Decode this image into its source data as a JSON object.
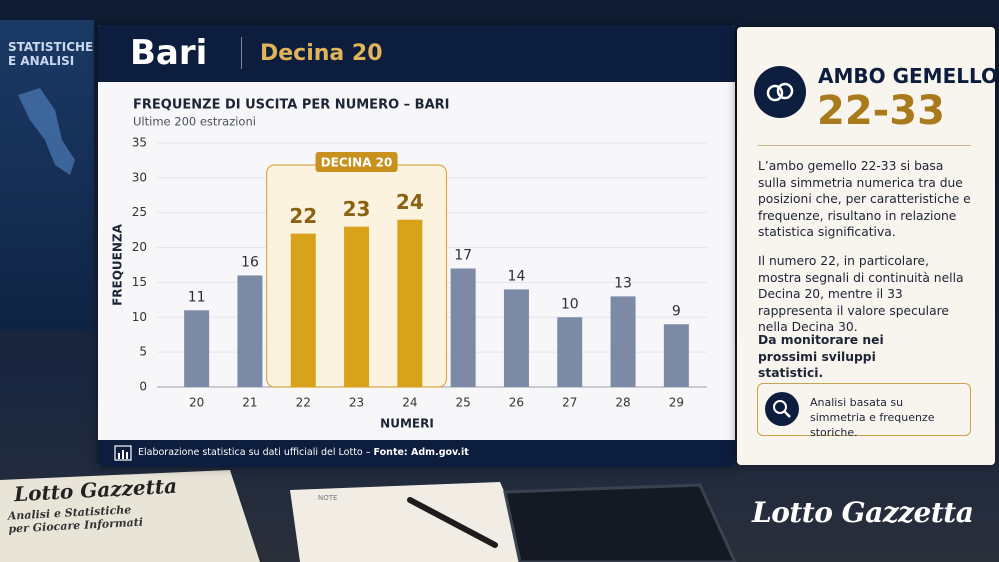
{
  "background": {
    "screen_label": "STATISTICHE E ANALISI",
    "newspaper_title": "Lotto Gazzetta",
    "newspaper_subtitle": "Analisi e Statistiche per Giocare Informati",
    "notebook_label": "NOTE"
  },
  "header": {
    "city": "Bari",
    "decade": "Decina 20"
  },
  "chart_data": {
    "type": "bar",
    "title": "FREQUENZE DI USCITA PER NUMERO – BARI",
    "subtitle": "Ultime 200 estrazioni",
    "x_label": "NUMERI",
    "y_label": "FREQUENZA",
    "categories": [
      "20",
      "21",
      "22",
      "23",
      "24",
      "25",
      "26",
      "27",
      "28",
      "29"
    ],
    "values": [
      11,
      16,
      22,
      23,
      24,
      17,
      14,
      10,
      13,
      9
    ],
    "colors": [
      "#7d8aa6",
      "#7d8aa6",
      "#d9a21b",
      "#d9a21b",
      "#d9a21b",
      "#7d8aa6",
      "#7d8aa6",
      "#7d8aa6",
      "#7d8aa6",
      "#7d8aa6"
    ],
    "highlight": {
      "label": "DECINA 20",
      "color": "#d9a21b"
    },
    "ylim": [
      0,
      35
    ],
    "yticks": [
      0,
      5,
      10,
      15,
      20,
      25,
      30,
      35
    ],
    "grid": true
  },
  "footer": {
    "source_text": "Elaborazione statistica su dati ufficiali del Lotto –",
    "source_link": "Fonte: Adm.gov.it"
  },
  "panel": {
    "title": "AMBO GEMELLO",
    "pair": "22-33",
    "paragraphs": [
      "L’ambo gemello 22-33 si basa sulla simmetria numerica tra due posizioni che, per caratteristiche e frequenze, risultano in relazione statistica significativa.",
      "Il numero 22, in particolare, mostra segnali di continuità nella Decina 20, mentre il 33 rappresenta il valore speculare nella Decina 30."
    ],
    "emphasis": "Da monitorare nei prossimi sviluppi statistici.",
    "note": "Analisi basata su simmetria e frequenze storiche."
  },
  "brand": "Lotto Gazzetta"
}
